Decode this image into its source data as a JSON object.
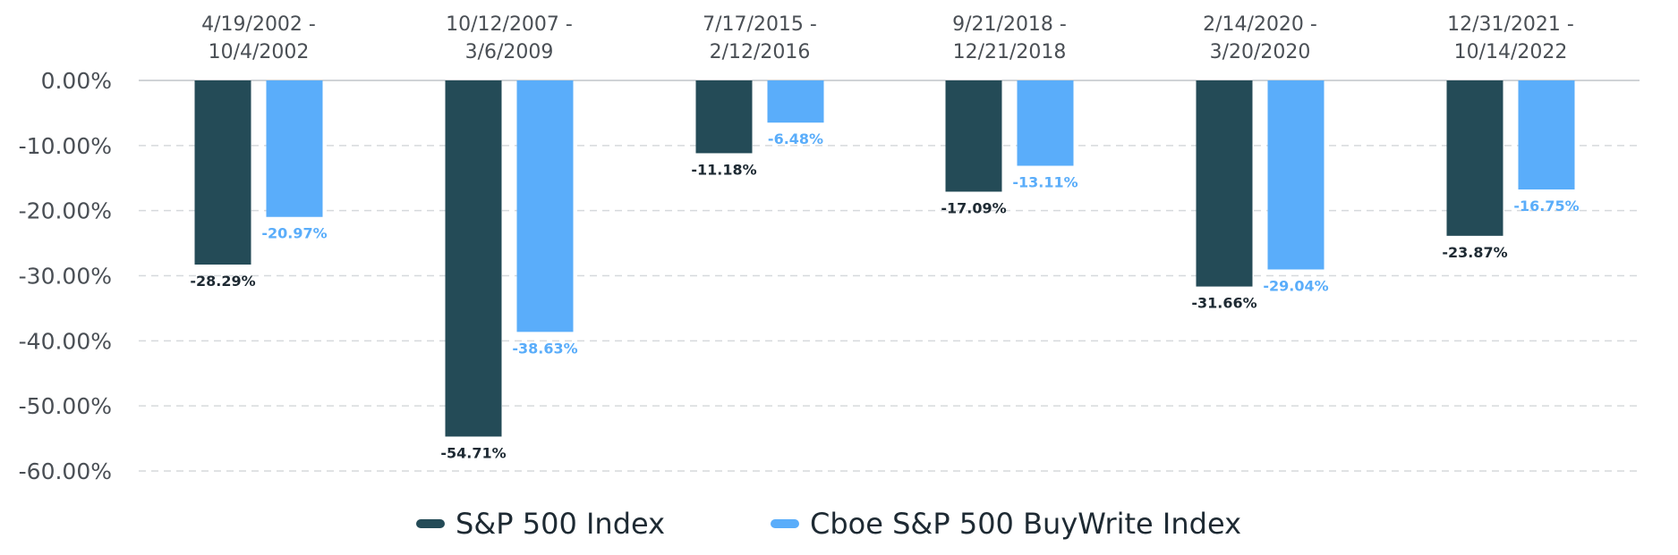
{
  "chart_data": {
    "type": "bar",
    "categories": [
      [
        "4/19/2002 -",
        "10/4/2002"
      ],
      [
        "10/12/2007 -",
        "3/6/2009"
      ],
      [
        "7/17/2015 -",
        "2/12/2016"
      ],
      [
        "9/21/2018 -",
        "12/21/2018"
      ],
      [
        "2/14/2020 -",
        "3/20/2020"
      ],
      [
        "12/31/2021 -",
        "10/14/2022"
      ]
    ],
    "series": [
      {
        "name": "S&P 500 Index",
        "color": "#244b57",
        "values": [
          -28.29,
          -54.71,
          -11.18,
          -17.09,
          -31.66,
          -23.87
        ],
        "labels": [
          "-28.29%",
          "-54.71%",
          "-11.18%",
          "-17.09%",
          "-31.66%",
          "-23.87%"
        ]
      },
      {
        "name": "Cboe S&P 500 BuyWrite Index",
        "color": "#5aadfa",
        "values": [
          -20.97,
          -38.63,
          -6.48,
          -13.11,
          -29.04,
          -16.75
        ],
        "labels": [
          "-20.97%",
          "-38.63%",
          "-6.48%",
          "-13.11%",
          "-29.04%",
          "-16.75%"
        ]
      }
    ],
    "y_ticks": [
      0,
      -10,
      -20,
      -30,
      -40,
      -50,
      -60
    ],
    "y_tick_labels": [
      "0.00%",
      "-10.00%",
      "-20.00%",
      "-30.00%",
      "-40.00%",
      "-50.00%",
      "-60.00%"
    ],
    "ylim": [
      -60,
      0
    ],
    "grid": true,
    "legend_position": "bottom-center"
  }
}
